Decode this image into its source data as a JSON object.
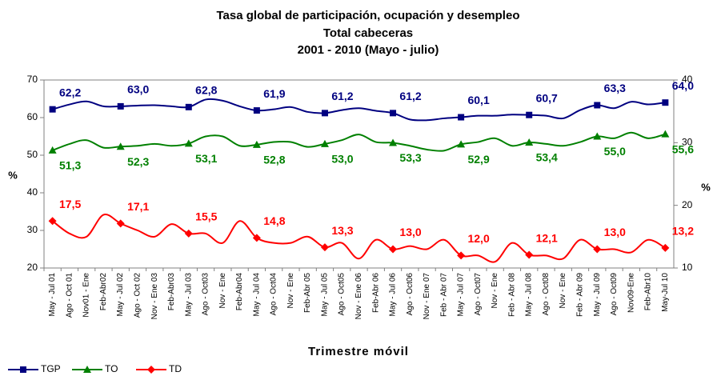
{
  "chart_data": {
    "type": "line",
    "title": [
      "Tasa global de participación, ocupación y desempleo",
      "Total cabeceras",
      "2001 - 2010 (Mayo - julio)"
    ],
    "x_label": "Trimestre móvil",
    "y_label": "%",
    "y2_label": "%",
    "categories": [
      "May - Jul 01",
      "Ago - Oct 01",
      "Nov01 - Ene",
      "Feb-Abr02",
      "May - Jul 02",
      "Ago - Oct 02",
      "Nov - Ene 03",
      "Feb-Abr03",
      "May - Jul 03",
      "Ago - Oct03",
      "Nov - Ene",
      "Feb-Abr04",
      "May - Jul 04",
      "Ago - Oct04",
      "Nov - Ene",
      "Feb-Abr 05",
      "May - Jul 05",
      "Ago - Oct05",
      "Nov - Ene 06",
      "Feb-Abr 06",
      "May - Jul 06",
      "Ago - Oct06",
      "Nov - Ene 07",
      "Feb - Abr 07",
      "May - Jul 07",
      "Ago - Oct07",
      "Nov - Ene",
      "Feb - Abr 08",
      "May - Jul 08",
      "Ago - Oct08",
      "Nov - Ene",
      "Feb - Abr 09",
      "May - Jul 09",
      "Ago - Oct09",
      "Nov09-Ene",
      "Feb-Abr10",
      "May-Jul 10"
    ],
    "series": [
      {
        "name": "TGP",
        "color": "#000080",
        "marker": "square",
        "values": [
          62.2,
          63.5,
          64.3,
          63.0,
          63.0,
          63.2,
          63.3,
          63.0,
          62.8,
          64.8,
          64.5,
          63.0,
          61.9,
          62.2,
          62.8,
          61.5,
          61.2,
          62.0,
          62.5,
          61.8,
          61.2,
          59.5,
          59.3,
          59.8,
          60.1,
          60.5,
          60.5,
          60.8,
          60.7,
          60.5,
          59.8,
          62.0,
          63.3,
          62.5,
          64.2,
          63.5,
          64.0
        ],
        "value_labels": [
          "62,2",
          null,
          null,
          null,
          "63,0",
          null,
          null,
          null,
          "62,8",
          null,
          null,
          null,
          "61,9",
          null,
          null,
          null,
          "61,2",
          null,
          null,
          null,
          "61,2",
          null,
          null,
          null,
          "60,1",
          null,
          null,
          null,
          "60,7",
          null,
          null,
          null,
          "63,3",
          null,
          null,
          null,
          "64,0"
        ]
      },
      {
        "name": "TO",
        "color": "#008000",
        "marker": "triangle",
        "values": [
          51.3,
          53.0,
          54.0,
          52.0,
          52.3,
          52.5,
          53.0,
          52.5,
          53.1,
          55.0,
          55.0,
          52.5,
          52.8,
          53.5,
          53.5,
          52.2,
          53.0,
          54.0,
          55.5,
          53.5,
          53.3,
          52.5,
          51.5,
          51.2,
          52.9,
          53.5,
          54.5,
          52.5,
          53.4,
          53.0,
          52.5,
          53.5,
          55.0,
          54.5,
          56.0,
          54.5,
          55.6
        ],
        "value_labels": [
          "51,3",
          null,
          null,
          null,
          "52,3",
          null,
          null,
          null,
          "53,1",
          null,
          null,
          null,
          "52,8",
          null,
          null,
          null,
          "53,0",
          null,
          null,
          null,
          "53,3",
          null,
          null,
          null,
          "52,9",
          null,
          null,
          null,
          "53,4",
          null,
          null,
          null,
          "55,0",
          null,
          null,
          null,
          "55,6"
        ]
      },
      {
        "name": "TD",
        "color": "#ff0000",
        "marker": "diamond",
        "axis": "y2",
        "values": [
          17.5,
          15.5,
          15.0,
          18.5,
          17.1,
          16.0,
          15.0,
          17.0,
          15.5,
          15.5,
          14.0,
          17.5,
          14.8,
          14.0,
          14.0,
          15.0,
          13.3,
          14.0,
          11.5,
          14.5,
          13.0,
          13.5,
          13.0,
          14.5,
          12.0,
          12.0,
          11.0,
          14.0,
          12.1,
          12.0,
          11.5,
          14.5,
          13.0,
          13.0,
          12.5,
          14.5,
          13.2
        ],
        "value_labels": [
          "17,5",
          null,
          null,
          null,
          "17,1",
          null,
          null,
          null,
          "15,5",
          null,
          null,
          null,
          "14,8",
          null,
          null,
          null,
          "13,3",
          null,
          null,
          null,
          "13,0",
          null,
          null,
          null,
          "12,0",
          null,
          null,
          null,
          "12,1",
          null,
          null,
          null,
          "13,0",
          null,
          null,
          null,
          "13,2"
        ]
      }
    ],
    "ylim": [
      20,
      70
    ],
    "yticks": [
      20,
      30,
      40,
      50,
      60,
      70
    ],
    "y2lim": [
      10,
      40
    ],
    "y2ticks": [
      10,
      20,
      30,
      40
    ],
    "legend": "bottom-left"
  }
}
